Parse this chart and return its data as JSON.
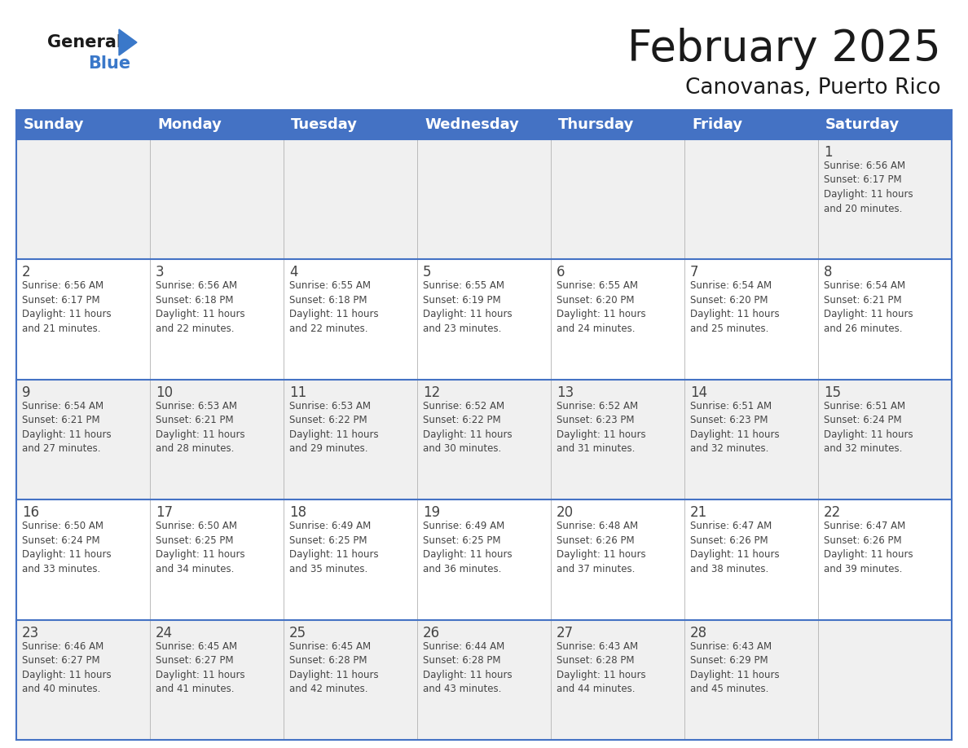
{
  "title": "February 2025",
  "subtitle": "Canovanas, Puerto Rico",
  "header_bg": "#4472C4",
  "header_text": "#FFFFFF",
  "cell_bg_light": "#F0F0F0",
  "border_color": "#4472C4",
  "inner_border_color": "#BBBBBB",
  "day_headers": [
    "Sunday",
    "Monday",
    "Tuesday",
    "Wednesday",
    "Thursday",
    "Friday",
    "Saturday"
  ],
  "title_color": "#1a1a1a",
  "subtitle_color": "#1a1a1a",
  "logo_general_color": "#1a1a1a",
  "logo_blue_color": "#3a78c9",
  "text_color": "#444444",
  "days": [
    {
      "day": 1,
      "col": 6,
      "row": 0,
      "sunrise": "6:56 AM",
      "sunset": "6:17 PM",
      "daylight_h": "11 hours",
      "daylight_m": "and 20 minutes."
    },
    {
      "day": 2,
      "col": 0,
      "row": 1,
      "sunrise": "6:56 AM",
      "sunset": "6:17 PM",
      "daylight_h": "11 hours",
      "daylight_m": "and 21 minutes."
    },
    {
      "day": 3,
      "col": 1,
      "row": 1,
      "sunrise": "6:56 AM",
      "sunset": "6:18 PM",
      "daylight_h": "11 hours",
      "daylight_m": "and 22 minutes."
    },
    {
      "day": 4,
      "col": 2,
      "row": 1,
      "sunrise": "6:55 AM",
      "sunset": "6:18 PM",
      "daylight_h": "11 hours",
      "daylight_m": "and 22 minutes."
    },
    {
      "day": 5,
      "col": 3,
      "row": 1,
      "sunrise": "6:55 AM",
      "sunset": "6:19 PM",
      "daylight_h": "11 hours",
      "daylight_m": "and 23 minutes."
    },
    {
      "day": 6,
      "col": 4,
      "row": 1,
      "sunrise": "6:55 AM",
      "sunset": "6:20 PM",
      "daylight_h": "11 hours",
      "daylight_m": "and 24 minutes."
    },
    {
      "day": 7,
      "col": 5,
      "row": 1,
      "sunrise": "6:54 AM",
      "sunset": "6:20 PM",
      "daylight_h": "11 hours",
      "daylight_m": "and 25 minutes."
    },
    {
      "day": 8,
      "col": 6,
      "row": 1,
      "sunrise": "6:54 AM",
      "sunset": "6:21 PM",
      "daylight_h": "11 hours",
      "daylight_m": "and 26 minutes."
    },
    {
      "day": 9,
      "col": 0,
      "row": 2,
      "sunrise": "6:54 AM",
      "sunset": "6:21 PM",
      "daylight_h": "11 hours",
      "daylight_m": "and 27 minutes."
    },
    {
      "day": 10,
      "col": 1,
      "row": 2,
      "sunrise": "6:53 AM",
      "sunset": "6:21 PM",
      "daylight_h": "11 hours",
      "daylight_m": "and 28 minutes."
    },
    {
      "day": 11,
      "col": 2,
      "row": 2,
      "sunrise": "6:53 AM",
      "sunset": "6:22 PM",
      "daylight_h": "11 hours",
      "daylight_m": "and 29 minutes."
    },
    {
      "day": 12,
      "col": 3,
      "row": 2,
      "sunrise": "6:52 AM",
      "sunset": "6:22 PM",
      "daylight_h": "11 hours",
      "daylight_m": "and 30 minutes."
    },
    {
      "day": 13,
      "col": 4,
      "row": 2,
      "sunrise": "6:52 AM",
      "sunset": "6:23 PM",
      "daylight_h": "11 hours",
      "daylight_m": "and 31 minutes."
    },
    {
      "day": 14,
      "col": 5,
      "row": 2,
      "sunrise": "6:51 AM",
      "sunset": "6:23 PM",
      "daylight_h": "11 hours",
      "daylight_m": "and 32 minutes."
    },
    {
      "day": 15,
      "col": 6,
      "row": 2,
      "sunrise": "6:51 AM",
      "sunset": "6:24 PM",
      "daylight_h": "11 hours",
      "daylight_m": "and 32 minutes."
    },
    {
      "day": 16,
      "col": 0,
      "row": 3,
      "sunrise": "6:50 AM",
      "sunset": "6:24 PM",
      "daylight_h": "11 hours",
      "daylight_m": "and 33 minutes."
    },
    {
      "day": 17,
      "col": 1,
      "row": 3,
      "sunrise": "6:50 AM",
      "sunset": "6:25 PM",
      "daylight_h": "11 hours",
      "daylight_m": "and 34 minutes."
    },
    {
      "day": 18,
      "col": 2,
      "row": 3,
      "sunrise": "6:49 AM",
      "sunset": "6:25 PM",
      "daylight_h": "11 hours",
      "daylight_m": "and 35 minutes."
    },
    {
      "day": 19,
      "col": 3,
      "row": 3,
      "sunrise": "6:49 AM",
      "sunset": "6:25 PM",
      "daylight_h": "11 hours",
      "daylight_m": "and 36 minutes."
    },
    {
      "day": 20,
      "col": 4,
      "row": 3,
      "sunrise": "6:48 AM",
      "sunset": "6:26 PM",
      "daylight_h": "11 hours",
      "daylight_m": "and 37 minutes."
    },
    {
      "day": 21,
      "col": 5,
      "row": 3,
      "sunrise": "6:47 AM",
      "sunset": "6:26 PM",
      "daylight_h": "11 hours",
      "daylight_m": "and 38 minutes."
    },
    {
      "day": 22,
      "col": 6,
      "row": 3,
      "sunrise": "6:47 AM",
      "sunset": "6:26 PM",
      "daylight_h": "11 hours",
      "daylight_m": "and 39 minutes."
    },
    {
      "day": 23,
      "col": 0,
      "row": 4,
      "sunrise": "6:46 AM",
      "sunset": "6:27 PM",
      "daylight_h": "11 hours",
      "daylight_m": "and 40 minutes."
    },
    {
      "day": 24,
      "col": 1,
      "row": 4,
      "sunrise": "6:45 AM",
      "sunset": "6:27 PM",
      "daylight_h": "11 hours",
      "daylight_m": "and 41 minutes."
    },
    {
      "day": 25,
      "col": 2,
      "row": 4,
      "sunrise": "6:45 AM",
      "sunset": "6:28 PM",
      "daylight_h": "11 hours",
      "daylight_m": "and 42 minutes."
    },
    {
      "day": 26,
      "col": 3,
      "row": 4,
      "sunrise": "6:44 AM",
      "sunset": "6:28 PM",
      "daylight_h": "11 hours",
      "daylight_m": "and 43 minutes."
    },
    {
      "day": 27,
      "col": 4,
      "row": 4,
      "sunrise": "6:43 AM",
      "sunset": "6:28 PM",
      "daylight_h": "11 hours",
      "daylight_m": "and 44 minutes."
    },
    {
      "day": 28,
      "col": 5,
      "row": 4,
      "sunrise": "6:43 AM",
      "sunset": "6:29 PM",
      "daylight_h": "11 hours",
      "daylight_m": "and 45 minutes."
    }
  ]
}
